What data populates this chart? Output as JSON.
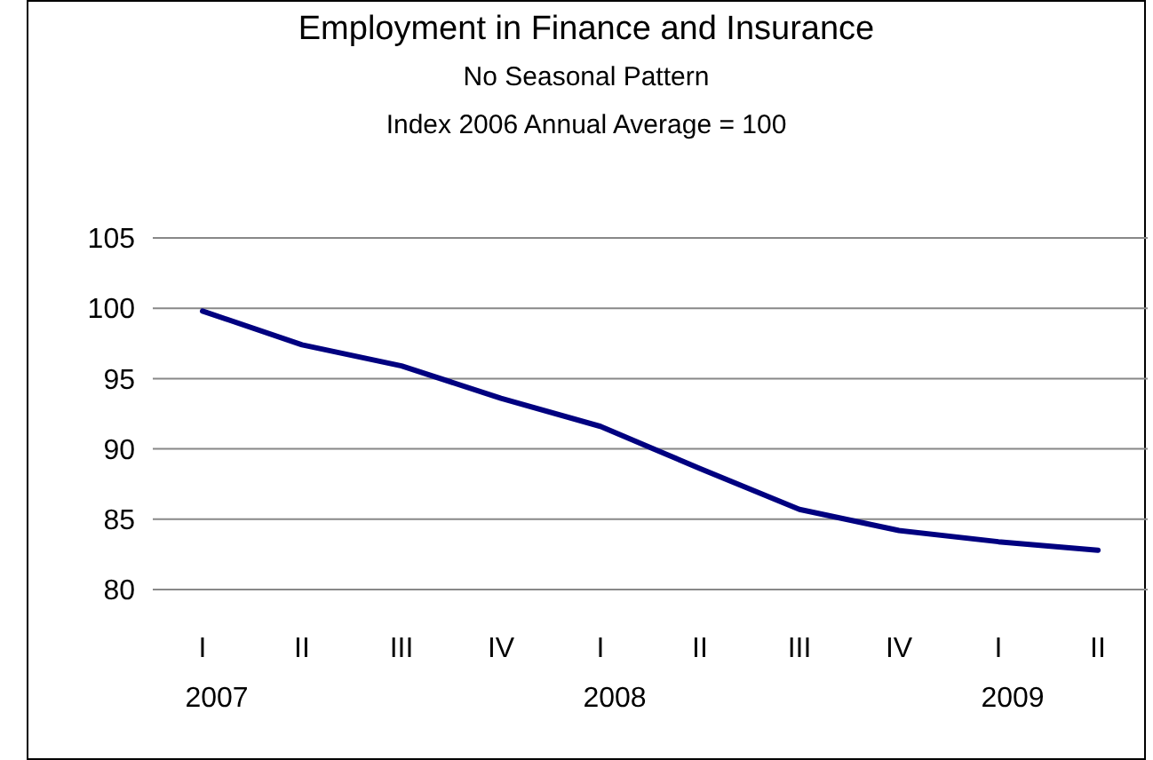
{
  "chart_data": {
    "type": "line",
    "title": "Employment in Finance and Insurance",
    "subtitle": "No Seasonal Pattern\nIndex 2006 Annual Average = 100",
    "categories": [
      "I\n2007",
      "II",
      "III",
      "IV",
      "I\n2008",
      "II",
      "III",
      "IV",
      "I\n2009",
      "II"
    ],
    "series": [
      {
        "color": "#000080",
        "values": [
          99.8,
          97.4,
          95.9,
          93.6,
          91.6,
          88.6,
          85.7,
          84.2,
          83.4,
          82.8
        ]
      }
    ],
    "ylim": [
      80,
      105
    ],
    "yticks": [
      80,
      85,
      90,
      95,
      100,
      105
    ],
    "grid": "y",
    "marker": "none",
    "line_style": "solid"
  }
}
